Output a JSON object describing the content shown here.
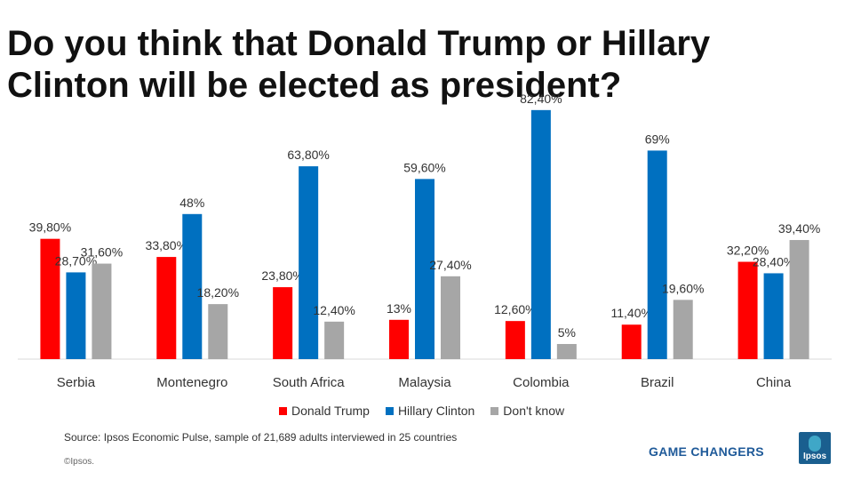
{
  "page": {
    "title": "Do you think that Donald Trump or Hillary Clinton will be elected as president?",
    "source": "Source: Ipsos Economic Pulse, sample of 21,689 adults interviewed in 25 countries",
    "copyright": "©Ipsos.",
    "brand_tagline": "GAME CHANGERS",
    "brand_logo_text": "Ipsos"
  },
  "chart_data": {
    "type": "bar",
    "title": "Do you think that Donald Trump or Hillary Clinton will be elected as president?",
    "categories": [
      "Serbia",
      "Montenegro",
      "South Africa",
      "Malaysia",
      "Colombia",
      "Brazil",
      "China"
    ],
    "series": [
      {
        "name": "Donald Trump",
        "color": "#ff0000",
        "values": [
          39.8,
          33.8,
          23.8,
          13,
          12.6,
          11.4,
          32.2
        ],
        "labels": [
          "39,80%",
          "33,80%",
          "23,80%",
          "13%",
          "12,60%",
          "11,40%",
          "32,20%"
        ]
      },
      {
        "name": "Hillary Clinton",
        "color": "#0070c0",
        "values": [
          28.7,
          48,
          63.8,
          59.6,
          82.4,
          69,
          28.4
        ],
        "labels": [
          "28,70%",
          "48%",
          "63,80%",
          "59,60%",
          "82,40%",
          "69%",
          "28,40%"
        ]
      },
      {
        "name": "Don't know",
        "color": "#a6a6a6",
        "values": [
          31.6,
          18.2,
          12.4,
          27.4,
          5,
          19.6,
          39.4
        ],
        "labels": [
          "31,60%",
          "18,20%",
          "12,40%",
          "27,40%",
          "5%",
          "19,60%",
          "39,40%"
        ]
      }
    ],
    "ylim": [
      0,
      100
    ],
    "grid": false,
    "legend": "bottom"
  }
}
